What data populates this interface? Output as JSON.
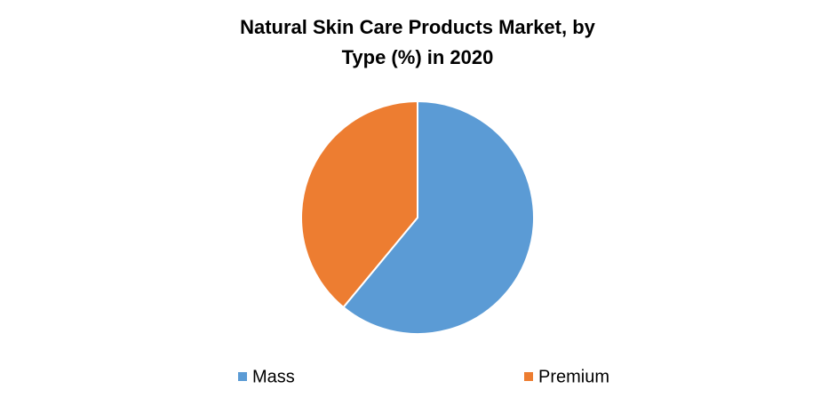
{
  "chart_data": {
    "type": "pie",
    "title": "Natural Skin Care Products Market, by Type (%) in 2020",
    "categories": [
      "Mass",
      "Premium"
    ],
    "values": [
      61,
      39
    ],
    "colors": [
      "#5b9bd5",
      "#ed7d31"
    ],
    "legend": "bottom"
  }
}
